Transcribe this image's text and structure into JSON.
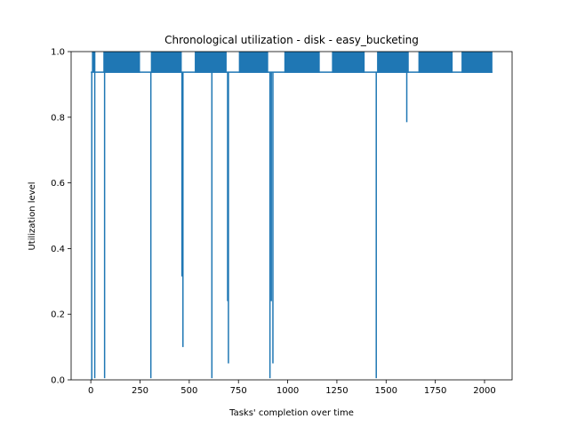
{
  "chart_data": {
    "type": "line",
    "title": "Chronological utilization - disk - easy_bucketing",
    "xlabel": "Tasks' completion over time",
    "ylabel": "Utilization level",
    "xlim": [
      -100,
      2140
    ],
    "ylim": [
      0.0,
      1.0
    ],
    "x_ticks": [
      0,
      250,
      500,
      750,
      1000,
      1250,
      1500,
      1750,
      2000
    ],
    "x_tick_labels": [
      "0",
      "250",
      "500",
      "750",
      "1000",
      "1250",
      "1500",
      "1750",
      "2000"
    ],
    "y_ticks": [
      0.0,
      0.2,
      0.4,
      0.6,
      0.8,
      1.0
    ],
    "y_tick_labels": [
      "0.0",
      "0.2",
      "0.4",
      "0.6",
      "0.8",
      "1.0"
    ],
    "grid": false,
    "legend": false,
    "color": "#1f77b4",
    "series": [
      {
        "base_level": 0.9375,
        "high_level": 1.0,
        "x_end": 2040,
        "dense_blocks": [
          [
            65,
            70
          ],
          [
            72,
            250
          ],
          [
            305,
            462
          ],
          [
            528,
            690
          ],
          [
            752,
            901
          ],
          [
            983,
            1163
          ],
          [
            1225,
            1391
          ],
          [
            1454,
            1615
          ],
          [
            1664,
            1838
          ],
          [
            1883,
            2040
          ]
        ],
        "full_spikes": [
          9,
          11,
          12,
          14,
          16,
          18,
          20,
          67,
          69,
          71
        ],
        "dips": [
          {
            "x": 5,
            "y": 0.0
          },
          {
            "x": 20,
            "y": 0.005
          },
          {
            "x": 70,
            "y": 0.005
          },
          {
            "x": 305,
            "y": 0.005
          },
          {
            "x": 463,
            "y": 0.315
          },
          {
            "x": 468,
            "y": 0.1
          },
          {
            "x": 615,
            "y": 0.005
          },
          {
            "x": 695,
            "y": 0.24
          },
          {
            "x": 699,
            "y": 0.05
          },
          {
            "x": 910,
            "y": 0.005
          },
          {
            "x": 917,
            "y": 0.24
          },
          {
            "x": 925,
            "y": 0.05
          },
          {
            "x": 1450,
            "y": 0.005
          },
          {
            "x": 1605,
            "y": 0.785
          }
        ]
      }
    ]
  }
}
